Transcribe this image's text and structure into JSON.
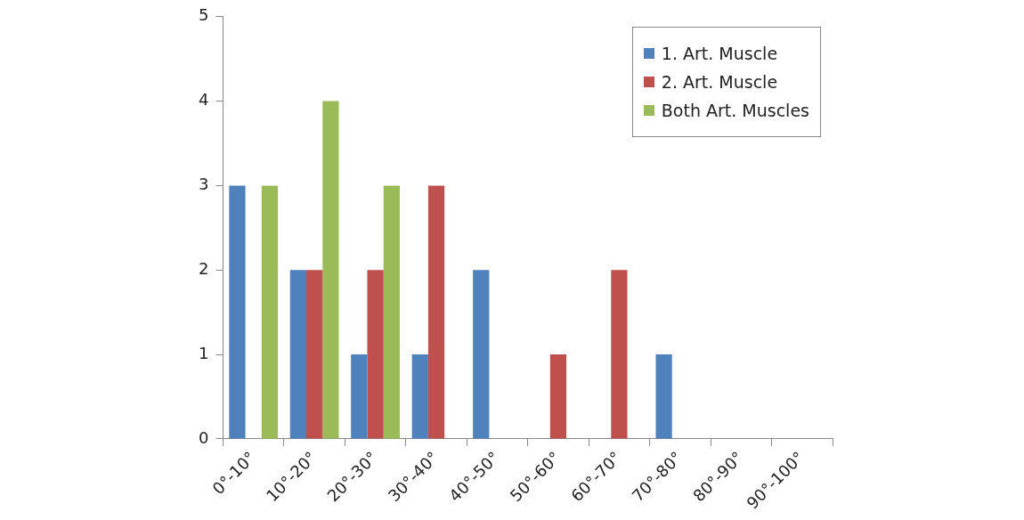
{
  "chart_data": {
    "type": "bar",
    "categories": [
      "0°-10°",
      "10°-20°",
      "20°-30°",
      "30°-40°",
      "40°-50°",
      "50°-60°",
      "60°-70°",
      "70°-80°",
      "80°-90°",
      "90°-100°"
    ],
    "series": [
      {
        "name": "1. Art. Muscle",
        "color": "#4f81bd",
        "values": [
          3,
          2,
          1,
          1,
          2,
          0,
          0,
          1,
          0,
          0
        ]
      },
      {
        "name": "2. Art. Muscle",
        "color": "#c0504d",
        "values": [
          0,
          2,
          2,
          3,
          0,
          1,
          2,
          0,
          0,
          0
        ]
      },
      {
        "name": "Both Art. Muscles",
        "color": "#9bbb59",
        "values": [
          3,
          4,
          3,
          0,
          0,
          0,
          0,
          0,
          0,
          0
        ]
      }
    ],
    "ylim": [
      0,
      5
    ],
    "yticks": [
      0,
      1,
      2,
      3,
      4,
      5
    ],
    "grid": false,
    "legend": "top right"
  }
}
